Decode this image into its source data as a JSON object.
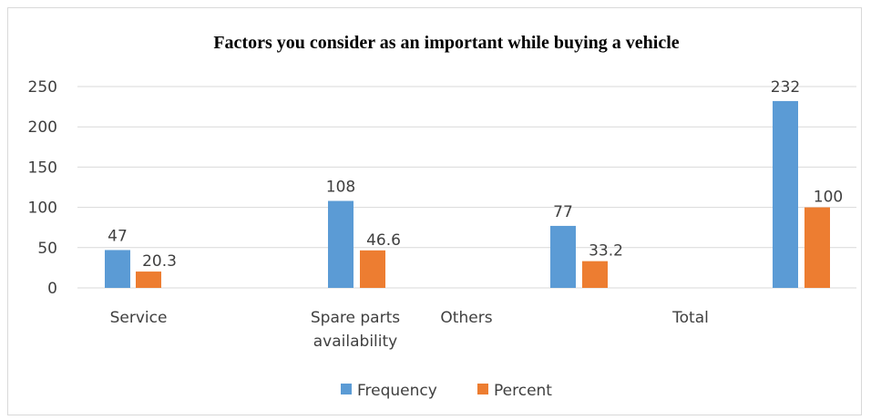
{
  "chart_data": {
    "type": "bar",
    "title": "Factors you consider as an important  while buying a vehicle",
    "categories": [
      "Service",
      "Spare parts availability",
      "Others",
      "Total"
    ],
    "series": [
      {
        "name": "Frequency",
        "color": "#5B9BD5",
        "values": [
          47,
          108,
          77,
          232
        ]
      },
      {
        "name": "Percent",
        "color": "#ED7D31",
        "values": [
          20.3,
          46.6,
          33.2,
          100
        ]
      }
    ],
    "data_labels": {
      "Frequency": [
        "47",
        "108",
        "77",
        "232"
      ],
      "Percent": [
        "20.3",
        "46.6",
        "33.2",
        "100"
      ]
    },
    "yticks": [
      "0",
      "50",
      "100",
      "150",
      "200",
      "250"
    ],
    "ylim": [
      0,
      250
    ],
    "grid": true,
    "legend_position": "bottom"
  }
}
